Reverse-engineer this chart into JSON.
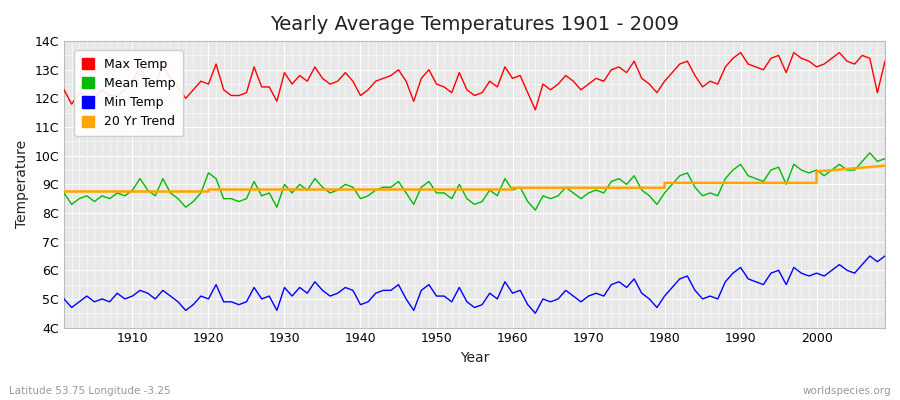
{
  "title": "Yearly Average Temperatures 1901 - 2009",
  "xlabel": "Year",
  "ylabel": "Temperature",
  "lat_lon_label": "Latitude 53.75 Longitude -3.25",
  "credit": "worldspecies.org",
  "years": [
    1901,
    1902,
    1903,
    1904,
    1905,
    1906,
    1907,
    1908,
    1909,
    1910,
    1911,
    1912,
    1913,
    1914,
    1915,
    1916,
    1917,
    1918,
    1919,
    1920,
    1921,
    1922,
    1923,
    1924,
    1925,
    1926,
    1927,
    1928,
    1929,
    1930,
    1931,
    1932,
    1933,
    1934,
    1935,
    1936,
    1937,
    1938,
    1939,
    1940,
    1941,
    1942,
    1943,
    1944,
    1945,
    1946,
    1947,
    1948,
    1949,
    1950,
    1951,
    1952,
    1953,
    1954,
    1955,
    1956,
    1957,
    1958,
    1959,
    1960,
    1961,
    1962,
    1963,
    1964,
    1965,
    1966,
    1967,
    1968,
    1969,
    1970,
    1971,
    1972,
    1973,
    1974,
    1975,
    1976,
    1977,
    1978,
    1979,
    1980,
    1981,
    1982,
    1983,
    1984,
    1985,
    1986,
    1987,
    1988,
    1989,
    1990,
    1991,
    1992,
    1993,
    1994,
    1995,
    1996,
    1997,
    1998,
    1999,
    2000,
    2001,
    2002,
    2003,
    2004,
    2005,
    2006,
    2007,
    2008,
    2009
  ],
  "max_temp": [
    12.3,
    11.8,
    12.2,
    12.1,
    12.0,
    12.3,
    12.1,
    12.1,
    12.3,
    12.6,
    13.1,
    12.4,
    12.5,
    13.2,
    12.7,
    12.4,
    12.0,
    12.3,
    12.6,
    12.5,
    13.2,
    12.3,
    12.1,
    12.1,
    12.2,
    13.1,
    12.4,
    12.4,
    11.9,
    12.9,
    12.5,
    12.8,
    12.6,
    13.1,
    12.7,
    12.5,
    12.6,
    12.9,
    12.6,
    12.1,
    12.3,
    12.6,
    12.7,
    12.8,
    13.0,
    12.6,
    11.9,
    12.7,
    13.0,
    12.5,
    12.4,
    12.2,
    12.9,
    12.3,
    12.1,
    12.2,
    12.6,
    12.4,
    13.1,
    12.7,
    12.8,
    12.2,
    11.6,
    12.5,
    12.3,
    12.5,
    12.8,
    12.6,
    12.3,
    12.5,
    12.7,
    12.6,
    13.0,
    13.1,
    12.9,
    13.3,
    12.7,
    12.5,
    12.2,
    12.6,
    12.9,
    13.2,
    13.3,
    12.8,
    12.4,
    12.6,
    12.5,
    13.1,
    13.4,
    13.6,
    13.2,
    13.1,
    13.0,
    13.4,
    13.5,
    12.9,
    13.6,
    13.4,
    13.3,
    13.1,
    13.2,
    13.4,
    13.6,
    13.3,
    13.2,
    13.5,
    13.4,
    12.2,
    13.3
  ],
  "mean_temp": [
    8.7,
    8.3,
    8.5,
    8.6,
    8.4,
    8.6,
    8.5,
    8.7,
    8.6,
    8.8,
    9.2,
    8.8,
    8.6,
    9.2,
    8.7,
    8.5,
    8.2,
    8.4,
    8.7,
    9.4,
    9.2,
    8.5,
    8.5,
    8.4,
    8.5,
    9.1,
    8.6,
    8.7,
    8.2,
    9.0,
    8.7,
    9.0,
    8.8,
    9.2,
    8.9,
    8.7,
    8.8,
    9.0,
    8.9,
    8.5,
    8.6,
    8.8,
    8.9,
    8.9,
    9.1,
    8.7,
    8.3,
    8.9,
    9.1,
    8.7,
    8.7,
    8.5,
    9.0,
    8.5,
    8.3,
    8.4,
    8.8,
    8.6,
    9.2,
    8.8,
    8.9,
    8.4,
    8.1,
    8.6,
    8.5,
    8.6,
    8.9,
    8.7,
    8.5,
    8.7,
    8.8,
    8.7,
    9.1,
    9.2,
    9.0,
    9.3,
    8.8,
    8.6,
    8.3,
    8.7,
    9.0,
    9.3,
    9.4,
    8.9,
    8.6,
    8.7,
    8.6,
    9.2,
    9.5,
    9.7,
    9.3,
    9.2,
    9.1,
    9.5,
    9.6,
    9.0,
    9.7,
    9.5,
    9.4,
    9.5,
    9.3,
    9.5,
    9.7,
    9.5,
    9.5,
    9.8,
    10.1,
    9.8,
    9.9
  ],
  "min_temp": [
    5.0,
    4.7,
    4.9,
    5.1,
    4.9,
    5.0,
    4.9,
    5.2,
    5.0,
    5.1,
    5.3,
    5.2,
    5.0,
    5.3,
    5.1,
    4.9,
    4.6,
    4.8,
    5.1,
    5.0,
    5.5,
    4.9,
    4.9,
    4.8,
    4.9,
    5.4,
    5.0,
    5.1,
    4.6,
    5.4,
    5.1,
    5.4,
    5.2,
    5.6,
    5.3,
    5.1,
    5.2,
    5.4,
    5.3,
    4.8,
    4.9,
    5.2,
    5.3,
    5.3,
    5.5,
    5.0,
    4.6,
    5.3,
    5.5,
    5.1,
    5.1,
    4.9,
    5.4,
    4.9,
    4.7,
    4.8,
    5.2,
    5.0,
    5.6,
    5.2,
    5.3,
    4.8,
    4.5,
    5.0,
    4.9,
    5.0,
    5.3,
    5.1,
    4.9,
    5.1,
    5.2,
    5.1,
    5.5,
    5.6,
    5.4,
    5.7,
    5.2,
    5.0,
    4.7,
    5.1,
    5.4,
    5.7,
    5.8,
    5.3,
    5.0,
    5.1,
    5.0,
    5.6,
    5.9,
    6.1,
    5.7,
    5.6,
    5.5,
    5.9,
    6.0,
    5.5,
    6.1,
    5.9,
    5.8,
    5.9,
    5.8,
    6.0,
    6.2,
    6.0,
    5.9,
    6.2,
    6.5,
    6.3,
    6.5
  ],
  "trend_years": [
    1901,
    1920,
    1920,
    1940,
    1940,
    1960,
    1960,
    1980,
    1980,
    2000,
    2000,
    2009
  ],
  "trend_values": [
    8.75,
    8.75,
    8.82,
    8.82,
    8.82,
    8.82,
    8.88,
    8.88,
    9.05,
    9.05,
    9.45,
    9.65
  ],
  "max_color": "#ff0000",
  "mean_color": "#00bb00",
  "min_color": "#0000ff",
  "trend_color": "#ffa500",
  "bg_color": "#ffffff",
  "plot_bg_color": "#e8e8e8",
  "grid_color": "#ffffff",
  "ylim": [
    4,
    14
  ],
  "yticks": [
    4,
    5,
    6,
    7,
    8,
    9,
    10,
    11,
    12,
    13,
    14
  ],
  "ytick_labels": [
    "4C",
    "5C",
    "6C",
    "7C",
    "8C",
    "9C",
    "10C",
    "11C",
    "12C",
    "13C",
    "14C"
  ],
  "title_fontsize": 14,
  "axis_label_fontsize": 10,
  "tick_fontsize": 9,
  "legend_fontsize": 9
}
